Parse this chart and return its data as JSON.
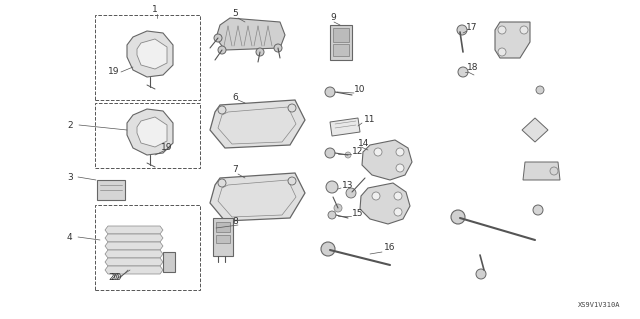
{
  "background_color": "#ffffff",
  "diagram_code": "XS9V1V310A",
  "figure_width": 6.4,
  "figure_height": 3.19,
  "dpi": 100,
  "text_color": "#333333",
  "line_color": "#555555",
  "font_size": 6.5,
  "diagram_code_fontsize": 5.0
}
